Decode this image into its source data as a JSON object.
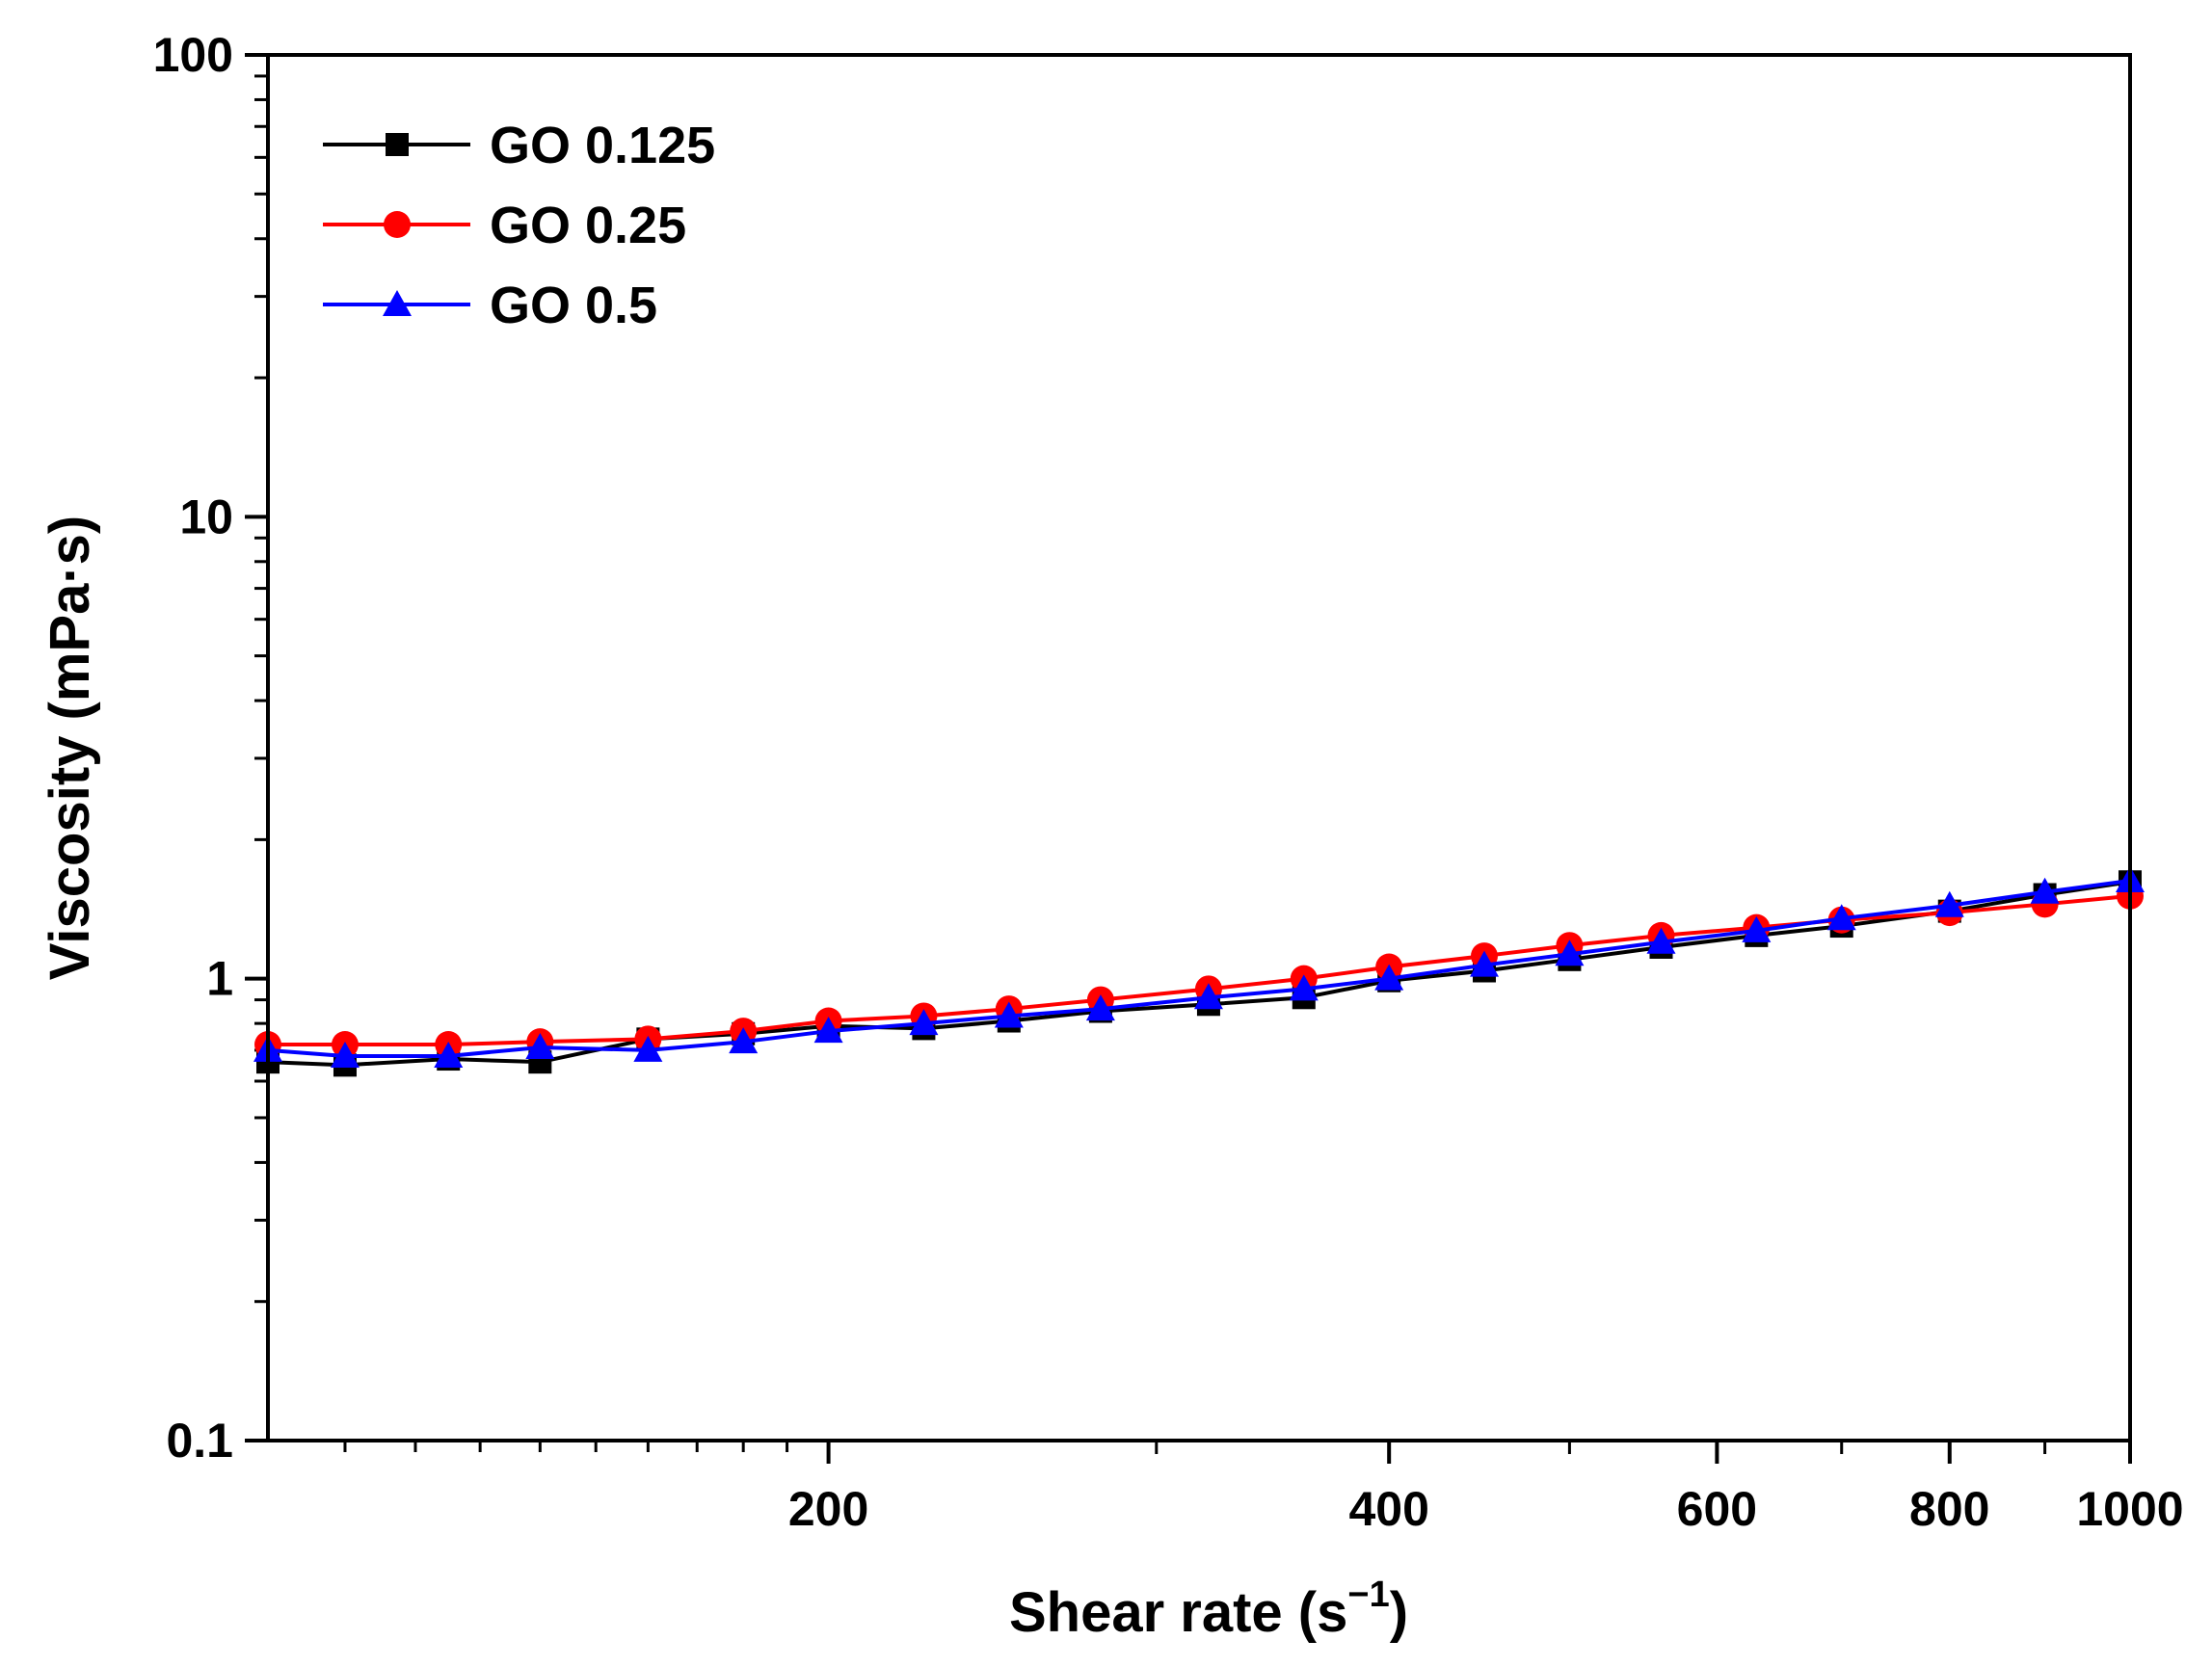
{
  "chart_data": {
    "type": "line",
    "title": "",
    "xlabel_main": "Shear rate (s",
    "xlabel_sup": "−1",
    "xlabel_close": ")",
    "ylabel": "Viscosity (mPa·s)",
    "xscale": "log",
    "yscale": "log",
    "xlim": [
      100,
      1000
    ],
    "ylim": [
      0.1,
      100
    ],
    "xticks": [
      200,
      400,
      600,
      800,
      1000
    ],
    "xtick_labels": [
      "200",
      "400",
      "600",
      "800",
      "1000"
    ],
    "yticks": [
      0.1,
      1,
      10,
      100
    ],
    "ytick_labels": [
      "0.1",
      "1",
      "10",
      "100"
    ],
    "legend_position": "top-left",
    "series": [
      {
        "name": "GO 0.125",
        "color": "#000000",
        "marker": "square",
        "x": [
          100,
          110,
          125,
          140,
          160,
          180,
          200,
          225,
          250,
          280,
          320,
          360,
          400,
          450,
          500,
          560,
          630,
          700,
          800,
          900,
          1000
        ],
        "values": [
          0.66,
          0.65,
          0.67,
          0.66,
          0.74,
          0.76,
          0.79,
          0.78,
          0.81,
          0.85,
          0.88,
          0.91,
          0.99,
          1.04,
          1.1,
          1.17,
          1.24,
          1.3,
          1.4,
          1.52,
          1.62
        ]
      },
      {
        "name": "GO 0.25",
        "color": "#ff0000",
        "marker": "circle",
        "x": [
          100,
          110,
          125,
          140,
          160,
          180,
          200,
          225,
          250,
          280,
          320,
          360,
          400,
          450,
          500,
          560,
          630,
          700,
          800,
          900,
          1000
        ],
        "values": [
          0.72,
          0.72,
          0.72,
          0.73,
          0.74,
          0.77,
          0.81,
          0.83,
          0.86,
          0.9,
          0.95,
          1.0,
          1.06,
          1.12,
          1.18,
          1.24,
          1.29,
          1.34,
          1.39,
          1.45,
          1.51
        ]
      },
      {
        "name": "GO 0.5",
        "color": "#0000ff",
        "marker": "triangle",
        "x": [
          100,
          110,
          125,
          140,
          160,
          180,
          200,
          225,
          250,
          280,
          320,
          360,
          400,
          450,
          500,
          560,
          630,
          700,
          800,
          900,
          1000
        ],
        "values": [
          0.7,
          0.68,
          0.68,
          0.71,
          0.7,
          0.73,
          0.77,
          0.8,
          0.83,
          0.86,
          0.91,
          0.95,
          1.0,
          1.07,
          1.13,
          1.2,
          1.27,
          1.35,
          1.44,
          1.54,
          1.63
        ]
      }
    ]
  }
}
